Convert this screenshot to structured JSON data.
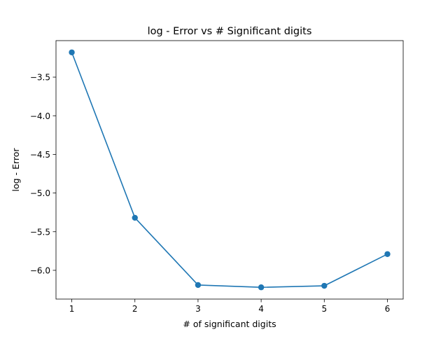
{
  "chart_data": {
    "type": "line",
    "title": "log - Error vs # Significant digits",
    "xlabel": "# of significant digits",
    "ylabel": "log - Error",
    "x": [
      1,
      2,
      3,
      4,
      5,
      6
    ],
    "series": [
      {
        "values": [
          -3.18,
          -5.32,
          -6.19,
          -6.22,
          -6.2,
          -5.79
        ]
      }
    ],
    "xticks": [
      1,
      2,
      3,
      4,
      5,
      6
    ],
    "xtick_labels": [
      "1",
      "2",
      "3",
      "4",
      "5",
      "6"
    ],
    "yticks": [
      -3.5,
      -4.0,
      -4.5,
      -5.0,
      -5.5,
      -6.0
    ],
    "ytick_labels": [
      "−3.5",
      "−4.0",
      "−4.5",
      "−5.0",
      "−5.5",
      "−6.0"
    ],
    "xlim": [
      0.75,
      6.25
    ],
    "ylim": [
      -6.372,
      -3.028
    ],
    "grid": false,
    "legend": false,
    "line_color": "#1f77b4",
    "marker": "circle"
  }
}
